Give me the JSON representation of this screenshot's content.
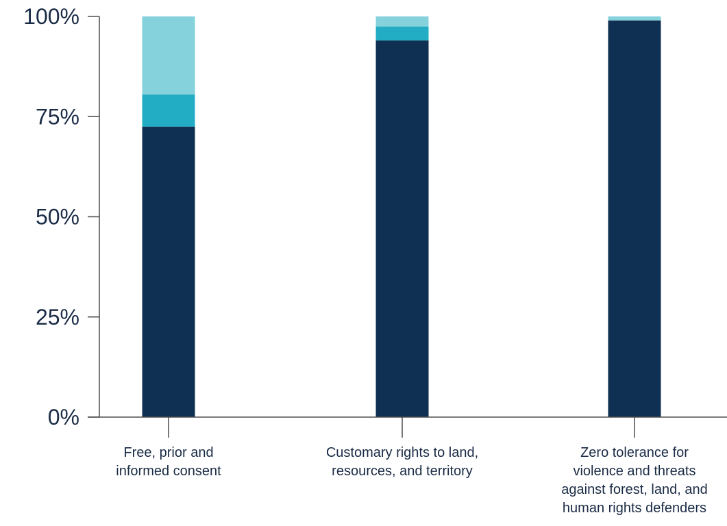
{
  "chart_data": {
    "type": "bar",
    "stacked": true,
    "normalized": true,
    "title": "",
    "xlabel": "",
    "ylabel": "",
    "ylim": [
      0,
      100
    ],
    "grid": false,
    "legend": "none",
    "yticks": [
      0,
      25,
      50,
      75,
      100
    ],
    "ytick_labels": [
      "0%",
      "25%",
      "50%",
      "75%",
      "100%"
    ],
    "categories": [
      "Free, prior and informed consent",
      "Customary rights to land, resources, and territory",
      "Zero tolerance for violence and threats against forest, land, and human rights defenders"
    ],
    "category_label_lines": [
      [
        "Free, prior and",
        "informed consent"
      ],
      [
        "Customary rights to land,",
        "resources, and territory"
      ],
      [
        "Zero tolerance for",
        "violence and threats",
        "against forest, land, and",
        "human rights defenders"
      ]
    ],
    "series": [
      {
        "values": [
          72.5,
          94,
          99
        ],
        "color": "#0f3052"
      },
      {
        "values": [
          8,
          3.5,
          0
        ],
        "color": "#22adc4"
      },
      {
        "values": [
          19.5,
          2.5,
          1
        ],
        "color": "#85d1dc"
      }
    ],
    "axis_color": "#4d4d4d"
  }
}
